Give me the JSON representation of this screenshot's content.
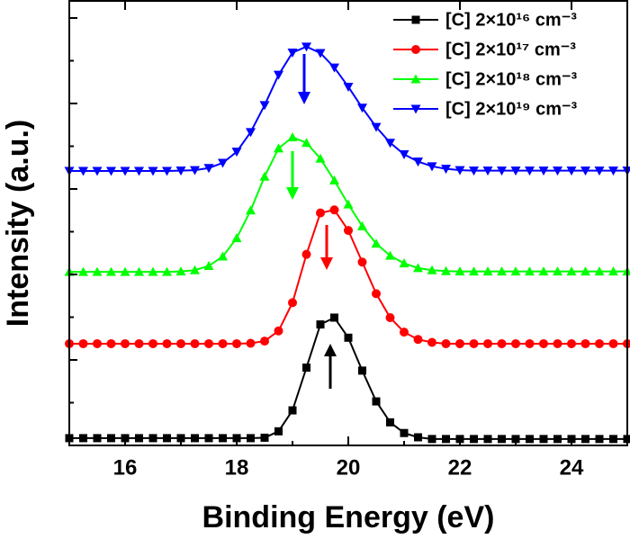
{
  "chart_data": {
    "type": "line",
    "xlabel": "Binding Energy (eV)",
    "ylabel": "Intensity (a.u.)",
    "x": [
      15,
      15.25,
      15.5,
      15.75,
      16,
      16.25,
      16.5,
      16.75,
      17,
      17.25,
      17.5,
      17.75,
      18,
      18.25,
      18.5,
      18.75,
      19,
      19.25,
      19.5,
      19.75,
      20,
      20.25,
      20.5,
      20.75,
      21,
      21.25,
      21.5,
      21.75,
      22,
      22.25,
      22.5,
      22.75,
      23,
      23.25,
      23.5,
      23.75,
      24,
      24.25,
      24.5,
      24.75,
      25
    ],
    "xlim": [
      15,
      25
    ],
    "xticks": [
      16,
      18,
      20,
      22,
      24
    ],
    "x_minor_ticks": [
      15,
      17,
      19,
      21,
      23,
      25
    ],
    "ylim": [
      0,
      10.4
    ],
    "yticks": [
      0,
      1,
      2,
      3,
      4,
      5,
      6,
      7,
      8,
      9,
      10
    ],
    "ytick_labels": false,
    "legend": "upper right",
    "series": [
      {
        "name": "[C] 2×10¹⁶ cm⁻³",
        "color": "#000000",
        "marker": "square",
        "values": [
          0.17,
          0.17,
          0.17,
          0.17,
          0.17,
          0.17,
          0.17,
          0.17,
          0.17,
          0.17,
          0.17,
          0.17,
          0.17,
          0.17,
          0.18,
          0.33,
          0.82,
          1.82,
          2.83,
          2.99,
          2.52,
          1.75,
          1.03,
          0.54,
          0.29,
          0.19,
          0.15,
          0.15,
          0.15,
          0.15,
          0.15,
          0.15,
          0.15,
          0.15,
          0.15,
          0.15,
          0.15,
          0.15,
          0.15,
          0.15,
          0.15
        ]
      },
      {
        "name": "[C] 2×10¹⁷ cm⁻³",
        "color": "#ff0000",
        "marker": "circle",
        "values": [
          2.38,
          2.38,
          2.38,
          2.38,
          2.38,
          2.38,
          2.38,
          2.38,
          2.38,
          2.38,
          2.38,
          2.38,
          2.38,
          2.39,
          2.44,
          2.68,
          3.34,
          4.47,
          5.44,
          5.51,
          5.03,
          4.29,
          3.55,
          2.99,
          2.65,
          2.48,
          2.41,
          2.38,
          2.38,
          2.38,
          2.38,
          2.38,
          2.38,
          2.38,
          2.38,
          2.38,
          2.38,
          2.38,
          2.38,
          2.38,
          2.38
        ]
      },
      {
        "name": "[C] 2×10¹⁸ cm⁻³",
        "color": "#00ff00",
        "marker": "triangle-up",
        "values": [
          4.06,
          4.06,
          4.06,
          4.06,
          4.06,
          4.06,
          4.06,
          4.06,
          4.07,
          4.1,
          4.2,
          4.42,
          4.85,
          5.5,
          6.29,
          6.95,
          7.21,
          7.08,
          6.71,
          6.2,
          5.64,
          5.13,
          4.72,
          4.44,
          4.26,
          4.15,
          4.1,
          4.08,
          4.07,
          4.07,
          4.07,
          4.07,
          4.07,
          4.07,
          4.07,
          4.07,
          4.07,
          4.07,
          4.07,
          4.07,
          4.07
        ]
      },
      {
        "name": "[C] 2×10¹⁹ cm⁻³",
        "color": "#0000ff",
        "marker": "triangle-down",
        "values": [
          6.42,
          6.42,
          6.42,
          6.42,
          6.42,
          6.42,
          6.42,
          6.42,
          6.43,
          6.44,
          6.49,
          6.61,
          6.87,
          7.33,
          7.96,
          8.67,
          9.19,
          9.33,
          9.18,
          8.84,
          8.39,
          7.9,
          7.45,
          7.08,
          6.81,
          6.64,
          6.53,
          6.47,
          6.44,
          6.43,
          6.43,
          6.43,
          6.43,
          6.43,
          6.43,
          6.43,
          6.43,
          6.43,
          6.43,
          6.43,
          6.43
        ]
      }
    ]
  }
}
